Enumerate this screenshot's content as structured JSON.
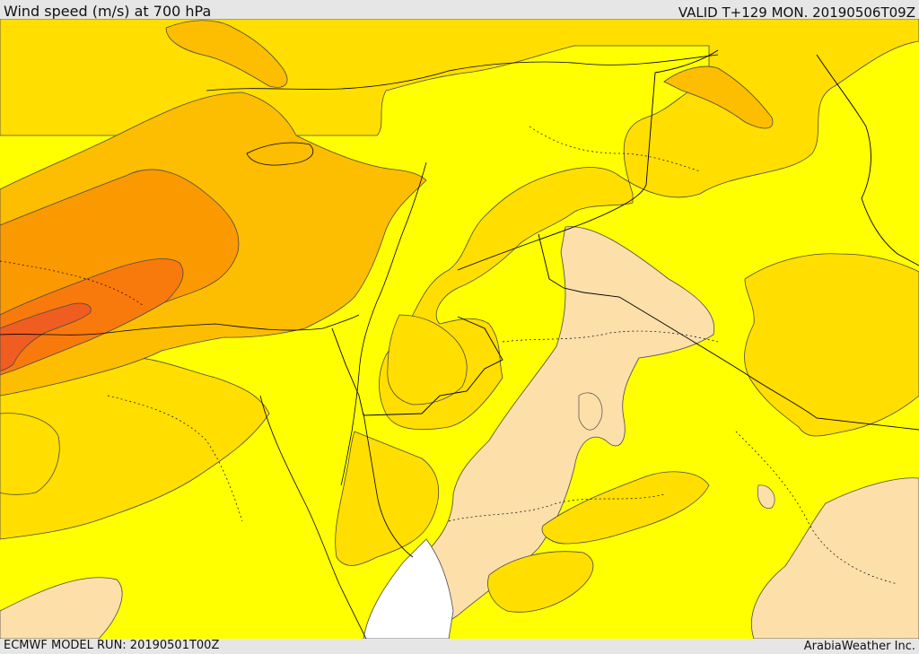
{
  "header": {
    "title": "Wind speed (m/s) at 700 hPa",
    "valid": "VALID T+129 MON. 20190506T09Z"
  },
  "footer": {
    "model_run": "ECMWF MODEL RUN: 20190501T00Z",
    "credit": "ArabiaWeather Inc."
  },
  "map": {
    "variable": "wind speed",
    "level": "700 hPa",
    "colors": {
      "no_data": "#ffffff",
      "class_1": "#fddfaa",
      "class_2": "#ffff00",
      "class_3": "#ffde00",
      "class_4": "#fdbd00",
      "class_5": "#fb9900",
      "class_6": "#f87a0d",
      "class_7": "#f05d20",
      "border": "#000000",
      "contour": "#4a4a4a"
    }
  }
}
